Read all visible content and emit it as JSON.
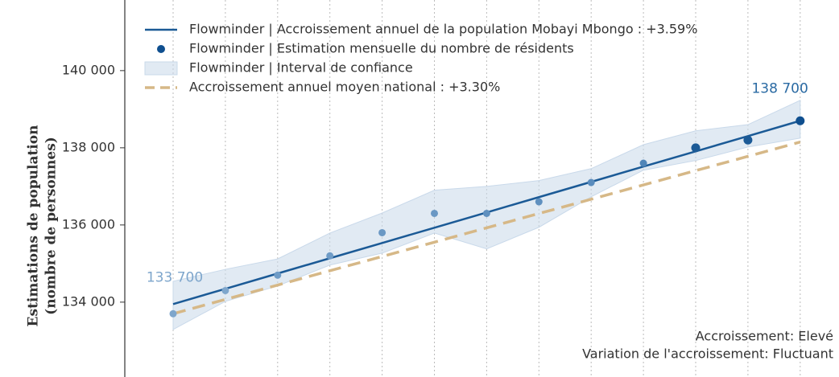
{
  "chart_data": {
    "type": "line",
    "ylabel": [
      "Estimations de population",
      "(nombre de personnes)"
    ],
    "categories": [
      null,
      null,
      null,
      null,
      null,
      null,
      null,
      null,
      null,
      null,
      null,
      null,
      null
    ],
    "ylim": [
      132060,
      141830
    ],
    "yticks": [
      {
        "value": 134000,
        "label": "134 000"
      },
      {
        "value": 136000,
        "label": "136 000"
      },
      {
        "value": 138000,
        "label": "138 000"
      },
      {
        "value": 140000,
        "label": "140 000"
      }
    ],
    "grid": true,
    "legend": "upper left",
    "series": [
      {
        "name": "Flowminder | Accroissement annuel de la population Mobayi Mbongo : +3.59%",
        "kind": "line",
        "color": "#1b5a96",
        "values": [
          133950,
          134346,
          134742,
          135138,
          135533,
          135929,
          136325,
          136721,
          137117,
          137513,
          137908,
          138304,
          138700
        ]
      },
      {
        "name": "Flowminder | Estimation mensuelle du nombre de résidents",
        "kind": "scatter",
        "color": "#0f4f8f",
        "point_colors": [
          "#7ea6cc",
          "#7ea6cc",
          "#6f9cc7",
          "#6f9cc7",
          "#6a98c4",
          "#6a98c4",
          "#5f90bf",
          "#5f90bf",
          "#5a8cbd",
          "#4f85b8",
          "#1b5a96",
          "#1b5a96",
          "#0f4f8f"
        ],
        "values": [
          133700,
          134300,
          134700,
          135200,
          135800,
          136300,
          136300,
          136600,
          137100,
          137600,
          138000,
          138200,
          138700
        ],
        "value_labels": [
          "133 700",
          null,
          null,
          null,
          null,
          null,
          null,
          null,
          null,
          null,
          null,
          null,
          "138 700"
        ],
        "value_label_colors": [
          "#7ea6cc",
          null,
          null,
          null,
          null,
          null,
          null,
          null,
          null,
          null,
          null,
          null,
          "#2a6aa3"
        ]
      },
      {
        "name": "Flowminder | Interval de confiance",
        "kind": "band",
        "color": "#c9d9ea",
        "lower": [
          133290,
          134020,
          134420,
          134960,
          135270,
          135790,
          135380,
          135940,
          136730,
          137420,
          137670,
          138020,
          138250
        ],
        "upper": [
          134540,
          134850,
          135120,
          135790,
          136310,
          136900,
          137000,
          137150,
          137460,
          138080,
          138440,
          138600,
          139230
        ]
      },
      {
        "name": "Accroissement annuel moyen national : +3.30%",
        "kind": "dashed",
        "color": "#d6b887",
        "values": [
          133700,
          134071,
          134442,
          134813,
          135183,
          135554,
          135925,
          136296,
          136667,
          137038,
          137408,
          137779,
          138150
        ]
      }
    ],
    "annotations": [
      "Accroissement: Elevé",
      "Variation de l'accroissement: Fluctuant"
    ]
  }
}
